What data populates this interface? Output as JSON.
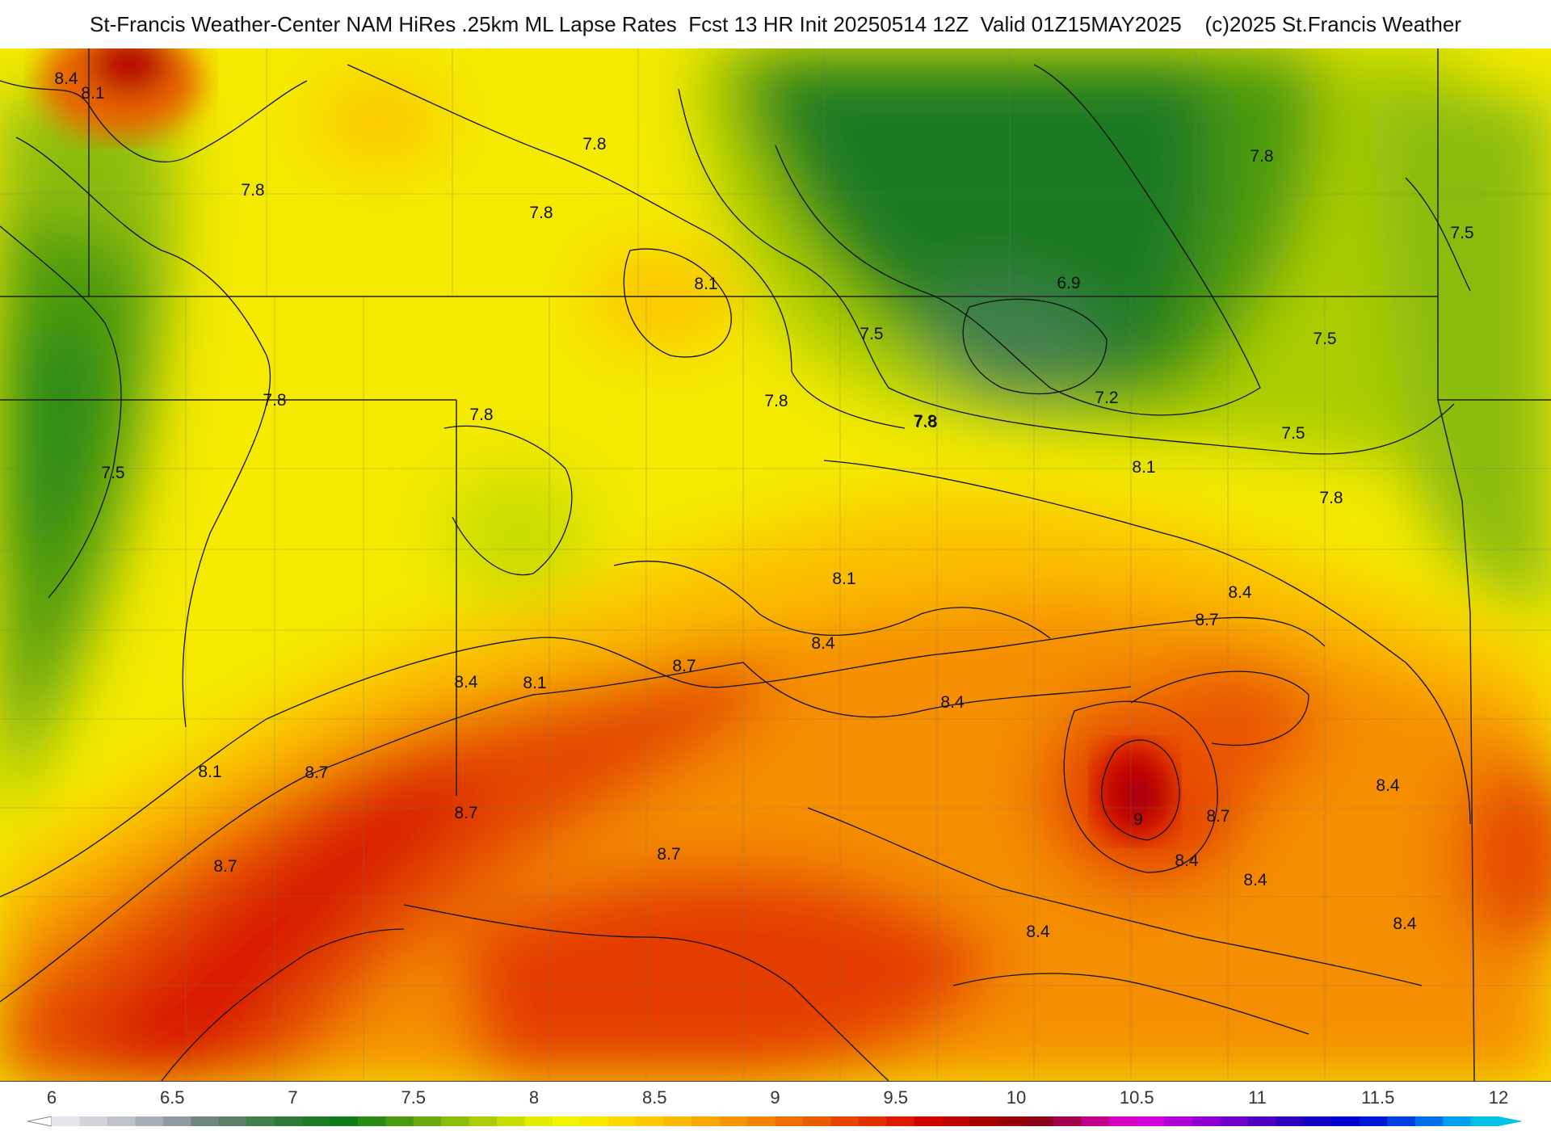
{
  "title": "St-Francis Weather-Center NAM HiRes .25km ML Lapse Rates  Fcst 13 HR Init 20250514 12Z  Valid 01Z15MAY2025    (c)2025 St.Francis Weather",
  "colorbar": {
    "min": 6,
    "max": 12,
    "tick_labels": [
      "6",
      "6.5",
      "7",
      "7.5",
      "8",
      "8.5",
      "9",
      "9.5",
      "10",
      "10.5",
      "11",
      "11.5",
      "12"
    ],
    "colors": [
      "#e6e6ea",
      "#d2d4d9",
      "#bfc2c9",
      "#a9afb8",
      "#8f9aa3",
      "#6f857d",
      "#5a7f66",
      "#3f7f4c",
      "#2f7a37",
      "#1f7a24",
      "#0f7a18",
      "#2b8a14",
      "#4a9a10",
      "#6aaa0c",
      "#8abc08",
      "#aacd05",
      "#c8dd02",
      "#e4ec00",
      "#f5f200",
      "#fbe800",
      "#fdd800",
      "#fdc800",
      "#fcb800",
      "#faa800",
      "#f79600",
      "#f38400",
      "#ef7000",
      "#ea5c00",
      "#e64600",
      "#e23000",
      "#dc1a00",
      "#d00000",
      "#bc0000",
      "#a80000",
      "#960008",
      "#8c0016",
      "#a0004a",
      "#c0008a",
      "#d800c0",
      "#d000d8",
      "#b000d8",
      "#9000d0",
      "#7000c8",
      "#5000c0",
      "#3000c0",
      "#1000c8",
      "#0000d0",
      "#0018d8",
      "#0040e0",
      "#0070e8",
      "#00a0f0",
      "#00c0e8"
    ]
  },
  "contour_labels": [
    {
      "text": "8.4"
    },
    {
      "text": "8.1"
    },
    {
      "text": "7.8"
    },
    {
      "text": "7.8"
    },
    {
      "text": "7.8"
    },
    {
      "text": "8.1"
    },
    {
      "text": "7.8"
    },
    {
      "text": "6.9"
    },
    {
      "text": "7.5"
    },
    {
      "text": "7.2"
    },
    {
      "text": "7.8"
    },
    {
      "text": "7.8"
    },
    {
      "text": "7.5"
    },
    {
      "text": "7.5"
    },
    {
      "text": "7.5"
    },
    {
      "text": "7.8"
    },
    {
      "text": "7.8"
    },
    {
      "text": "7.8"
    },
    {
      "text": "7.5"
    },
    {
      "text": "8.1"
    },
    {
      "text": "7.8"
    },
    {
      "text": "8.1"
    },
    {
      "text": "8.4"
    },
    {
      "text": "8.7"
    },
    {
      "text": "8.4"
    },
    {
      "text": "8.1"
    },
    {
      "text": "8.4"
    },
    {
      "text": "8.7"
    },
    {
      "text": "8.4"
    },
    {
      "text": "8.1"
    },
    {
      "text": "8.7"
    },
    {
      "text": "8.7"
    },
    {
      "text": "8.7"
    },
    {
      "text": "9"
    },
    {
      "text": "8.7"
    },
    {
      "text": "8.4"
    },
    {
      "text": "8.7"
    },
    {
      "text": "8.4"
    },
    {
      "text": "8.4"
    },
    {
      "text": "8.4"
    },
    {
      "text": "8.4"
    }
  ]
}
